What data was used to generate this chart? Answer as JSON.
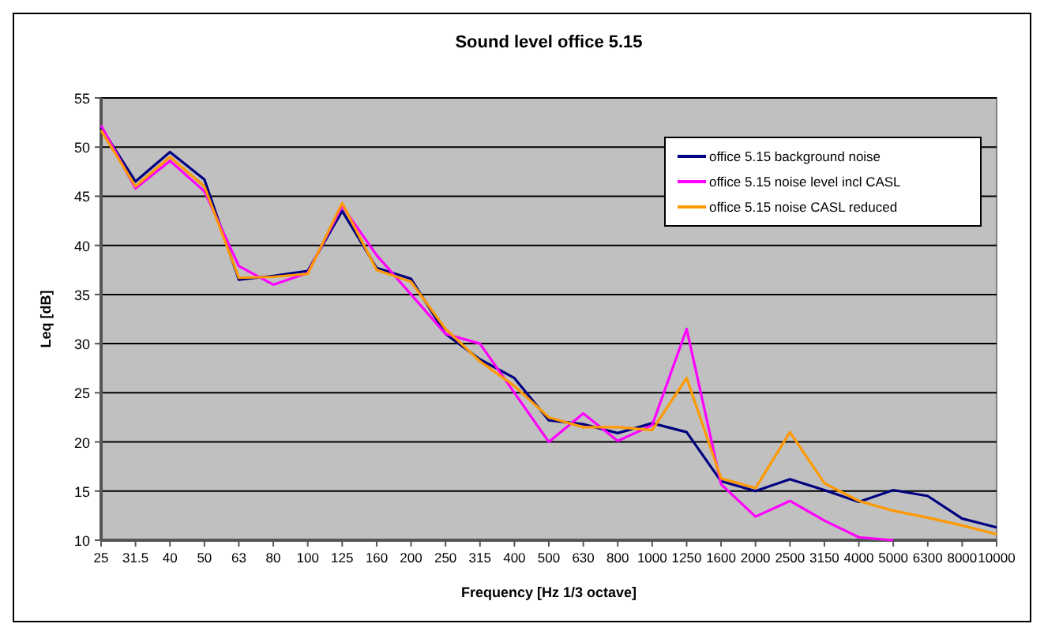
{
  "chart_data": {
    "type": "line",
    "title": "Sound level office 5.15",
    "xlabel": "Frequency [Hz 1/3 octave]",
    "ylabel": "Leq [dB]",
    "categories": [
      "25",
      "31.5",
      "40",
      "50",
      "63",
      "80",
      "100",
      "125",
      "160",
      "200",
      "250",
      "315",
      "400",
      "500",
      "630",
      "800",
      "1000",
      "1250",
      "1600",
      "2000",
      "2500",
      "3150",
      "4000",
      "5000",
      "6300",
      "8000",
      "10000"
    ],
    "series": [
      {
        "name": "office 5.15 background noise",
        "color": "#000080",
        "values": [
          52,
          46.5,
          49.5,
          46.7,
          36.5,
          36.9,
          37.4,
          43.5,
          37.7,
          36.6,
          31,
          28.4,
          26.5,
          22.2,
          21.8,
          20.9,
          21.9,
          21,
          16,
          15,
          16.2,
          15.1,
          13.9,
          15.1,
          14.5,
          12.2,
          11.3
        ]
      },
      {
        "name": "office 5.15 noise level incl CASL",
        "color": "#ff00ff",
        "values": [
          52.2,
          45.8,
          48.6,
          45.5,
          37.9,
          36,
          37.2,
          44,
          39,
          35,
          31,
          30,
          25,
          20,
          22.9,
          20.1,
          21.7,
          31.5,
          15.7,
          12.4,
          14,
          12,
          10.3,
          10,
          null,
          null,
          null
        ]
      },
      {
        "name": "office 5.15 noise CASL reduced",
        "color": "#ff9900",
        "values": [
          51.7,
          46,
          49,
          46,
          36.7,
          36.8,
          37.1,
          44.3,
          37.5,
          36.3,
          31.5,
          28.2,
          25.7,
          22.5,
          21.5,
          21.5,
          21.2,
          26.5,
          16.3,
          15.3,
          21,
          15.8,
          14,
          13,
          12.3,
          11.5,
          10.6
        ]
      }
    ],
    "ylim": [
      10,
      55
    ],
    "yticks": [
      10,
      15,
      20,
      25,
      30,
      35,
      40,
      45,
      50,
      55
    ],
    "grid": "y",
    "legend": "top right",
    "marker": "none",
    "line_style": "solid"
  }
}
